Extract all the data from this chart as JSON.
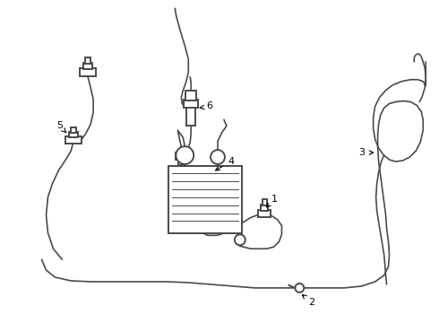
{
  "bg_color": "#ffffff",
  "line_color": "#4a4a4a",
  "label_color": "#000000",
  "lw": 1.2,
  "clw": 1.4,
  "fig_width": 4.9,
  "fig_height": 3.6,
  "dpi": 100
}
